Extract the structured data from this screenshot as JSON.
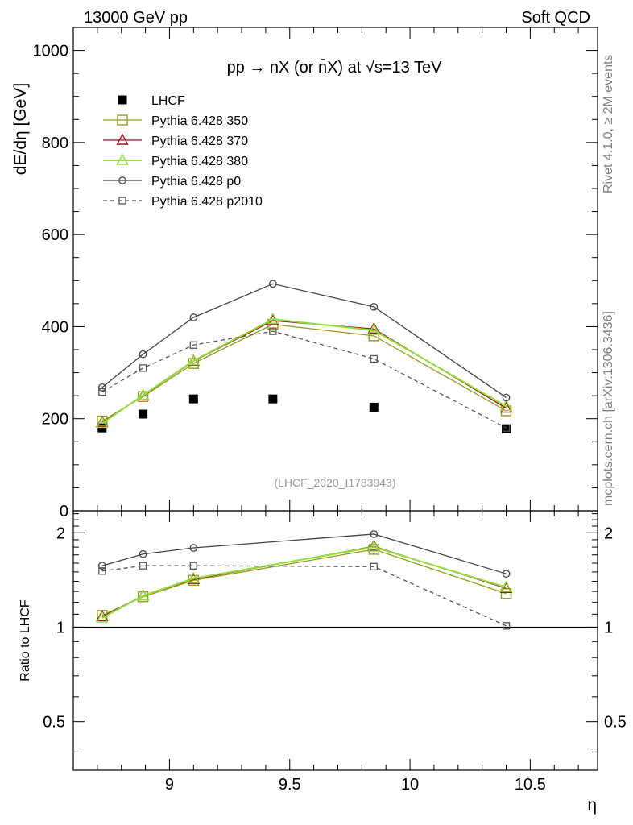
{
  "header": {
    "left": "13000 GeV pp",
    "right": "Soft QCD"
  },
  "side_labels": {
    "rivet": "Rivet 4.1.0, ≥ 2M events",
    "mcplots": "mcplots.cern.ch [arXiv:1306.3436]"
  },
  "colors": {
    "lhcf": "#000000",
    "p350": "#9a9a20",
    "p370": "#a01020",
    "p380": "#8ee03a",
    "p0": "#444444",
    "p2010": "#555555"
  },
  "chart_data": [
    {
      "type": "line",
      "panel": "main",
      "title": "pp → nX (or n̄X) at √s=13 TeV",
      "watermark": "(LHCF_2020_I1783943)",
      "xlabel": "η",
      "ylabel": "dE/dη [GeV]",
      "xlim": [
        8.6,
        10.78
      ],
      "ylim": [
        0,
        1050
      ],
      "yticks": [
        0,
        200,
        400,
        600,
        800,
        1000
      ],
      "x": [
        8.72,
        8.89,
        9.1,
        9.43,
        9.85,
        10.4
      ],
      "series": [
        {
          "name": "LHCF",
          "key": "lhcf",
          "marker": "filled-square",
          "line": "none",
          "values": [
            180,
            210,
            243,
            243,
            225,
            178
          ]
        },
        {
          "name": "Pythia 6.428 350",
          "key": "p350",
          "marker": "open-square",
          "line": "solid",
          "values": [
            195,
            248,
            320,
            405,
            380,
            217
          ]
        },
        {
          "name": "Pythia 6.428 370",
          "key": "p370",
          "marker": "open-triangle",
          "line": "solid",
          "values": [
            192,
            250,
            325,
            413,
            395,
            223
          ]
        },
        {
          "name": "Pythia 6.428 380",
          "key": "p380",
          "marker": "open-triangle",
          "line": "solid",
          "values": [
            190,
            251,
            326,
            416,
            392,
            227
          ]
        },
        {
          "name": "Pythia 6.428 p0",
          "key": "p0",
          "marker": "open-circle",
          "line": "solid",
          "values": [
            268,
            340,
            420,
            493,
            443,
            246
          ]
        },
        {
          "name": "Pythia 6.428 p2010",
          "key": "p2010",
          "marker": "open-square-small",
          "line": "dashed",
          "values": [
            258,
            310,
            360,
            390,
            330,
            180
          ]
        }
      ]
    },
    {
      "type": "line",
      "panel": "ratio",
      "ylabel": "Ratio to LHCF",
      "xlabel": "η",
      "xlim": [
        8.6,
        10.78
      ],
      "ylim": [
        0.35,
        2.35
      ],
      "yticks": [
        0.5,
        1,
        2
      ],
      "xticks": [
        9,
        9.5,
        10,
        10.5
      ],
      "x": [
        8.72,
        8.89,
        9.1,
        9.85,
        10.4
      ],
      "series": [
        {
          "name": "Pythia 6.428 350",
          "key": "p350",
          "marker": "open-square",
          "line": "solid",
          "values": [
            1.09,
            1.25,
            1.41,
            1.77,
            1.28
          ]
        },
        {
          "name": "Pythia 6.428 370",
          "key": "p370",
          "marker": "open-triangle",
          "line": "solid",
          "values": [
            1.08,
            1.26,
            1.42,
            1.81,
            1.33
          ]
        },
        {
          "name": "Pythia 6.428 380",
          "key": "p380",
          "marker": "open-triangle",
          "line": "solid",
          "values": [
            1.07,
            1.26,
            1.43,
            1.8,
            1.34
          ]
        },
        {
          "name": "Pythia 6.428 p0",
          "key": "p0",
          "marker": "open-circle",
          "line": "solid",
          "values": [
            1.57,
            1.71,
            1.79,
            1.98,
            1.48
          ]
        },
        {
          "name": "Pythia 6.428 p2010",
          "key": "p2010",
          "marker": "open-square-small",
          "line": "dashed",
          "values": [
            1.51,
            1.57,
            1.57,
            1.56,
            1.01
          ]
        }
      ]
    }
  ]
}
